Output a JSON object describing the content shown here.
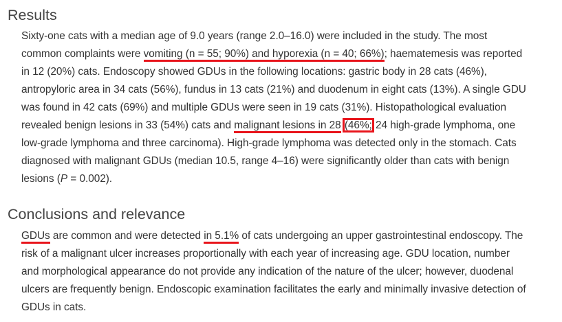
{
  "results": {
    "heading": "Results",
    "lines": [
      [
        "Sixty-one cats with a median age of 9.0 years (range 2.0–16.0) were included in the study. The most"
      ],
      [
        "common complaints were ",
        "vomiting (n = 55; 90%) and hyporexia (n = 40; 66%)",
        "; haematemesis was reported"
      ],
      [
        "in 12 (20%) cats. Endoscopy showed GDUs in the following locations: gastric body in 28 cats (46%),"
      ],
      [
        "antropyloric area in 34 cats (56%), fundus in 13 cats (21%) and duodenum in eight cats (13%). A single GDU"
      ],
      [
        "was found in 42 cats (69%) and multiple GDUs were seen in 19 cats (31%). Histopathological evaluation"
      ],
      [
        "revealed benign lesions in 33 (54%) cats and ",
        "malignant lesions in 28",
        " ",
        "(46%;",
        " 24 high-grade lymphoma, one"
      ],
      [
        "low-grade lymphoma and three carcinoma). High-grade lymphoma was detected only in the stomach. Cats"
      ],
      [
        "diagnosed with malignant GDUs (median 10.5, range 4–16) were significantly older than cats with benign"
      ],
      [
        "lesions (",
        "P",
        " = 0.002)."
      ]
    ]
  },
  "conclusions": {
    "heading": "Conclusions and relevance",
    "lines": [
      [
        "GDUs",
        " are common and were detected ",
        "in 5.1%",
        " of cats undergoing an upper gastrointestinal endoscopy. The"
      ],
      [
        "risk of a malignant ulcer increases proportionally with each year of increasing age. GDU location, number"
      ],
      [
        "and morphological appearance do not provide any indication of the nature of the ulcer; however, duodenal"
      ],
      [
        "ulcers are frequently benign. Endoscopic examination facilitates the early and minimally invasive detection of"
      ],
      [
        "GDUs in cats."
      ]
    ]
  },
  "annotation_color": "#e8141b"
}
